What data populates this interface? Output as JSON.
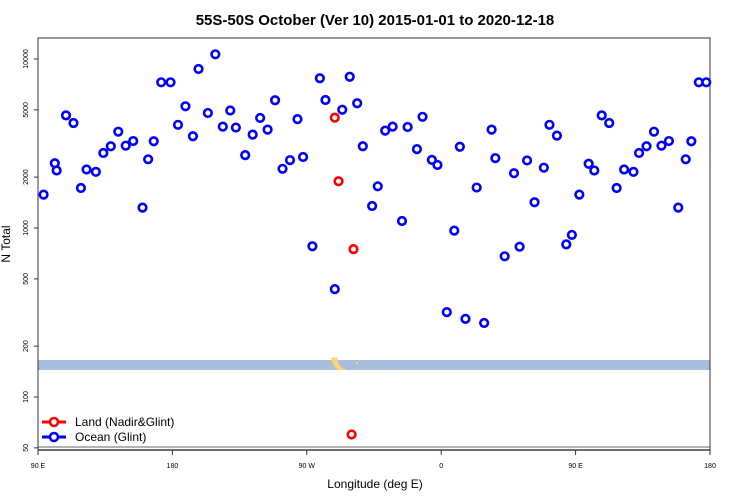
{
  "chart_data": {
    "type": "scatter",
    "title": "55S-50S October (Ver 10)   2015-01-01 to 2020-12-18",
    "xlabel": "Longitude (deg E)",
    "ylabel": "N Total",
    "xlim": [
      90,
      450
    ],
    "ylim": [
      50,
      13000
    ],
    "yscale": "log",
    "x_ticks": [
      90,
      180,
      270,
      360,
      450
    ],
    "x_tick_labels": [
      "90 E",
      "180",
      "90 W",
      "0",
      "90 E",
      "180"
    ],
    "x_tick_values": [
      90,
      180,
      270,
      360,
      450,
      540
    ],
    "y_ticks": [
      50,
      100,
      200,
      500,
      1000,
      2000,
      5000,
      10000
    ],
    "y_tick_labels": [
      "50",
      "100",
      "200",
      "500",
      "1000",
      "2000",
      "5000",
      "10000"
    ],
    "legend": {
      "position": "bottom-left",
      "entries": [
        "Land (Nadir&Glint)",
        "Ocean (Glint)"
      ]
    },
    "colors": {
      "land": "#ff0000",
      "ocean": "#0000ff",
      "band": "#a9bedc",
      "land_mask": "#ffd36b"
    },
    "series": [
      {
        "name": "Land (Nadir&Glint)",
        "points": [
          [
            249,
            4500
          ],
          [
            251,
            1890
          ],
          [
            258,
            60
          ],
          [
            259,
            750
          ]
        ]
      },
      {
        "name": "Ocean (Glint)",
        "points": [
          [
            93,
            1575
          ],
          [
            99,
            2415
          ],
          [
            100,
            2190
          ],
          [
            105,
            4640
          ],
          [
            109,
            4180
          ],
          [
            113,
            1725
          ],
          [
            116,
            2220
          ],
          [
            121,
            2150
          ],
          [
            125,
            2780
          ],
          [
            129,
            3045
          ],
          [
            133,
            3715
          ],
          [
            137,
            3070
          ],
          [
            141,
            3270
          ],
          [
            146,
            1320
          ],
          [
            149,
            2550
          ],
          [
            152,
            3260
          ],
          [
            156,
            7280
          ],
          [
            161,
            7280
          ],
          [
            165,
            4080
          ],
          [
            169,
            5250
          ],
          [
            173,
            3490
          ],
          [
            176,
            8730
          ],
          [
            181,
            4790
          ],
          [
            185,
            10660
          ],
          [
            189,
            3980
          ],
          [
            193,
            4960
          ],
          [
            196,
            3930
          ],
          [
            201,
            2700
          ],
          [
            205,
            3570
          ],
          [
            209,
            4480
          ],
          [
            213,
            3820
          ],
          [
            217,
            5700
          ],
          [
            221,
            2240
          ],
          [
            225,
            2520
          ],
          [
            229,
            4410
          ],
          [
            232,
            2630
          ],
          [
            237,
            780
          ],
          [
            241,
            7690
          ],
          [
            244,
            5720
          ],
          [
            249,
            435
          ],
          [
            253,
            5010
          ],
          [
            257,
            7850
          ],
          [
            261,
            5470
          ],
          [
            264,
            3045
          ],
          [
            269,
            1350
          ],
          [
            272,
            1765
          ],
          [
            276,
            3770
          ],
          [
            280,
            3980
          ],
          [
            285,
            1100
          ],
          [
            288,
            3960
          ],
          [
            293,
            2930
          ],
          [
            296,
            4550
          ],
          [
            301,
            2530
          ],
          [
            304,
            2360
          ],
          [
            309,
            318
          ],
          [
            313,
            965
          ],
          [
            316,
            3025
          ],
          [
            319,
            290
          ],
          [
            325,
            1735
          ],
          [
            329,
            274
          ],
          [
            333,
            3820
          ],
          [
            335,
            2590
          ],
          [
            340,
            680
          ],
          [
            345,
            2110
          ],
          [
            348,
            775
          ],
          [
            352,
            2510
          ],
          [
            356,
            1420
          ],
          [
            361,
            2275
          ],
          [
            364,
            4080
          ],
          [
            368,
            3520
          ],
          [
            373,
            800
          ],
          [
            376,
            910
          ],
          [
            380,
            1575
          ],
          [
            385,
            2400
          ],
          [
            388,
            2190
          ],
          [
            392,
            4640
          ],
          [
            396,
            4180
          ],
          [
            400,
            1725
          ],
          [
            404,
            2220
          ],
          [
            409,
            2150
          ],
          [
            412,
            2780
          ],
          [
            416,
            3045
          ],
          [
            420,
            3715
          ],
          [
            424,
            3070
          ],
          [
            428,
            3270
          ],
          [
            433,
            1320
          ],
          [
            437,
            2550
          ],
          [
            440,
            3260
          ],
          [
            444,
            7280
          ],
          [
            448,
            7280
          ]
        ]
      }
    ]
  }
}
